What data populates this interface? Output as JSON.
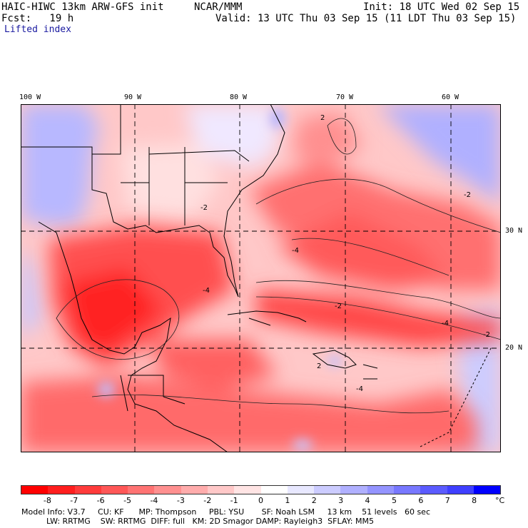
{
  "header": {
    "model": "HAIC-HIWC 13km ARW-GFS init",
    "org": "NCAR/MMM",
    "init": "Init: 18 UTC Wed 02 Sep 15",
    "fcst": "Fcst:   19 h",
    "valid": "Valid: 13 UTC Thu 03 Sep 15 (11 LDT Thu 03 Sep 15)",
    "field": "Lifted index"
  },
  "axes": {
    "lon_labels": [
      "100 W",
      "90 W",
      "80 W",
      "70 W",
      "60 W"
    ],
    "lat_labels": [
      "30 N",
      "20 N"
    ]
  },
  "map": {
    "contour_labels": [
      "-2",
      "-2",
      "-4",
      "-4",
      "-2",
      "2",
      "2",
      "-4",
      "-2",
      "-4"
    ]
  },
  "colorbar": {
    "ticks": [
      "-8",
      "-7",
      "-6",
      "-5",
      "-4",
      "-3",
      "-2",
      "-1",
      "0",
      "1",
      "2",
      "3",
      "4",
      "5",
      "6",
      "7",
      "8"
    ],
    "unit": "°C",
    "colors": [
      "#ff0000",
      "#ff1e1e",
      "#ff3b3b",
      "#ff5757",
      "#ff7373",
      "#ff9090",
      "#ffacac",
      "#ffc8c8",
      "#ffe4e4",
      "#ffffff",
      "#e8e8ff",
      "#ccccff",
      "#b0b0ff",
      "#9494ff",
      "#7878ff",
      "#5b5bff",
      "#3f3fff",
      "#0000ff"
    ]
  },
  "footer": {
    "line1": "Model Info: V3.7     CU: KF      MP: Thompson     PBL: YSU       SF: Noah LSM     13 km    51 levels   60 sec",
    "line2": "          LW: RRTMG    SW: RRTMG  DIFF: full   KM: 2D Smagor DAMP: Rayleigh3  SFLAY: MM5"
  }
}
